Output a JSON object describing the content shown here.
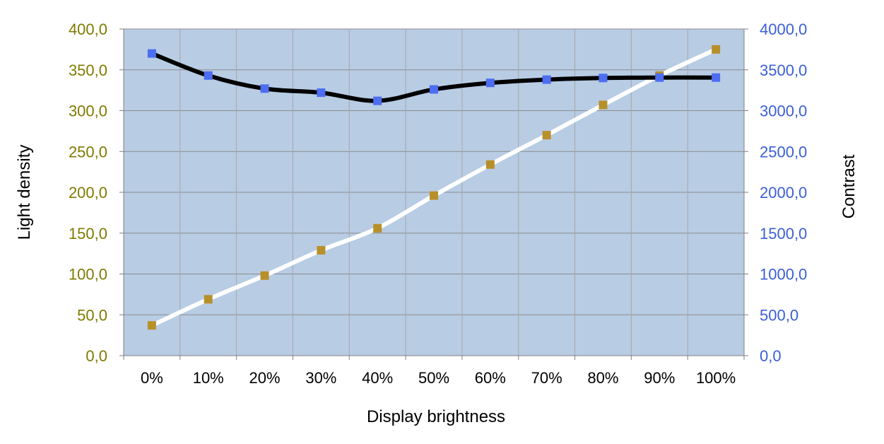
{
  "chart_data": {
    "type": "line",
    "xlabel": "Display brightness",
    "ylabel_left": "Light density",
    "ylabel_right": "Contrast",
    "categories": [
      "0%",
      "10%",
      "20%",
      "30%",
      "40%",
      "50%",
      "60%",
      "70%",
      "80%",
      "90%",
      "100%"
    ],
    "y_left": {
      "min": 0,
      "max": 400,
      "step": 50,
      "tick_labels": [
        "0,0",
        "50,0",
        "100,0",
        "150,0",
        "200,0",
        "250,0",
        "300,0",
        "350,0",
        "400,0"
      ],
      "color": "#7f7a00"
    },
    "y_right": {
      "min": 0,
      "max": 4000,
      "step": 500,
      "tick_labels": [
        "0,0",
        "500,0",
        "1000,0",
        "1500,0",
        "2000,0",
        "2500,0",
        "3000,0",
        "3500,0",
        "4000,0"
      ],
      "color": "#3a5fd6"
    },
    "grid": true,
    "plot_background": "#b8cce4",
    "series": [
      {
        "axis": "left",
        "line_color": "#ffffff",
        "marker_color": "#b8902a",
        "values": [
          37,
          69,
          98,
          129,
          156,
          196,
          234,
          270,
          307,
          343,
          375
        ]
      },
      {
        "axis": "right",
        "line_color": "#000000",
        "marker_color": "#4d6ef0",
        "values": [
          3700,
          3430,
          3270,
          3220,
          3120,
          3260,
          3340,
          3380,
          3400,
          3405,
          3405
        ]
      }
    ]
  }
}
